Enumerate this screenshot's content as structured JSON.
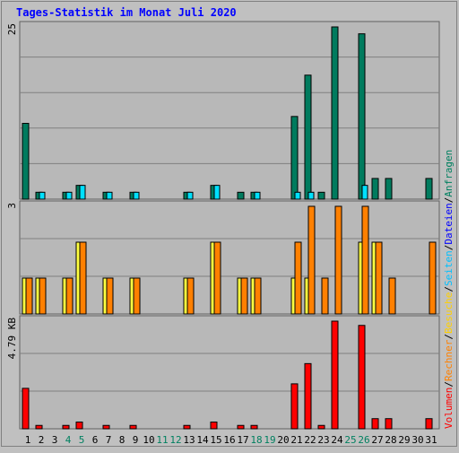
{
  "title": "Tages-Statistik im Monat Juli 2020",
  "colors": {
    "background": "#c0c0c0",
    "plot_bg": "#b8b8b8",
    "gridline": "#808080",
    "title": "#0000ff",
    "anfragen": "#007b5e",
    "dateien": "#00e0ff",
    "seiten": "#ff8000",
    "besuche": "#ffff40",
    "rechner": "#ff8000",
    "volumen": "#ff0000",
    "weekend_label": "#008060",
    "day_label": "#000000"
  },
  "legend": {
    "top": [
      {
        "text": "Anfragen",
        "color": "#008060"
      },
      {
        "text": "/",
        "color": "#000000"
      },
      {
        "text": "Dateien",
        "color": "#0000ff"
      },
      {
        "text": "/",
        "color": "#000000"
      },
      {
        "text": "Seiten",
        "color": "#00c0ff"
      },
      {
        "text": "/",
        "color": "#000000"
      },
      {
        "text": "Besuche",
        "color": "#ffd000"
      },
      {
        "text": "/",
        "color": "#000000"
      },
      {
        "text": "Rechner",
        "color": "#ff8000"
      },
      {
        "text": "/",
        "color": "#000000"
      },
      {
        "text": "Volumen",
        "color": "#ff0000"
      }
    ]
  },
  "chart_data": [
    {
      "type": "bar",
      "panel": "top",
      "ymax_label": "25",
      "ylim": [
        0,
        25
      ],
      "x": [
        1,
        2,
        3,
        4,
        5,
        6,
        7,
        8,
        9,
        10,
        11,
        12,
        13,
        14,
        15,
        16,
        17,
        18,
        19,
        20,
        21,
        22,
        23,
        24,
        25,
        26,
        27,
        28,
        29,
        30,
        31
      ],
      "series": [
        {
          "name": "Anfragen",
          "values": [
            11,
            1,
            0,
            1,
            2,
            0,
            1,
            0,
            1,
            0,
            0,
            0,
            1,
            0,
            2,
            0,
            1,
            1,
            0,
            0,
            12,
            18,
            1,
            25,
            0,
            24,
            3,
            3,
            0,
            0,
            3
          ]
        },
        {
          "name": "Dateien",
          "values": [
            0,
            1,
            0,
            1,
            2,
            0,
            1,
            0,
            1,
            0,
            0,
            0,
            1,
            0,
            2,
            0,
            0,
            1,
            0,
            0,
            1,
            1,
            0,
            0,
            0,
            2,
            0,
            0,
            0,
            0,
            0
          ]
        }
      ]
    },
    {
      "type": "bar",
      "panel": "middle",
      "ymax_label": "3",
      "ylim": [
        0,
        3
      ],
      "x": [
        1,
        2,
        3,
        4,
        5,
        6,
        7,
        8,
        9,
        10,
        11,
        12,
        13,
        14,
        15,
        16,
        17,
        18,
        19,
        20,
        21,
        22,
        23,
        24,
        25,
        26,
        27,
        28,
        29,
        30,
        31
      ],
      "series": [
        {
          "name": "Besuche",
          "values": [
            1,
            1,
            0,
            1,
            2,
            0,
            1,
            0,
            1,
            0,
            0,
            0,
            1,
            0,
            2,
            0,
            1,
            1,
            0,
            0,
            1,
            1,
            0,
            0,
            0,
            2,
            2,
            0,
            0,
            0,
            0
          ]
        },
        {
          "name": "Rechner",
          "values": [
            1,
            1,
            0,
            1,
            2,
            0,
            1,
            0,
            1,
            0,
            0,
            0,
            1,
            0,
            2,
            0,
            1,
            1,
            0,
            0,
            2,
            3,
            1,
            3,
            0,
            3,
            2,
            1,
            0,
            0,
            2
          ]
        }
      ]
    },
    {
      "type": "bar",
      "panel": "bottom",
      "ymax_label": "4.79 KB",
      "ylim": [
        0,
        4.79
      ],
      "x": [
        1,
        2,
        3,
        4,
        5,
        6,
        7,
        8,
        9,
        10,
        11,
        12,
        13,
        14,
        15,
        16,
        17,
        18,
        19,
        20,
        21,
        22,
        23,
        24,
        25,
        26,
        27,
        28,
        29,
        30,
        31
      ],
      "series": [
        {
          "name": "Volumen",
          "values": [
            1.8,
            0.15,
            0,
            0.15,
            0.3,
            0,
            0.15,
            0,
            0.15,
            0,
            0,
            0,
            0.15,
            0,
            0.3,
            0,
            0.15,
            0.15,
            0,
            0,
            2.0,
            2.9,
            0.15,
            4.79,
            0,
            4.6,
            0.45,
            0.45,
            0,
            0,
            0.45
          ]
        }
      ]
    }
  ],
  "xaxis": {
    "labels": [
      "1",
      "2",
      "3",
      "4",
      "5",
      "6",
      "7",
      "8",
      "9",
      "10",
      "11",
      "12",
      "13",
      "14",
      "15",
      "16",
      "17",
      "18",
      "19",
      "20",
      "21",
      "22",
      "23",
      "24",
      "25",
      "26",
      "27",
      "28",
      "29",
      "30",
      "31"
    ],
    "weekend_days": [
      4,
      5,
      11,
      12,
      18,
      19,
      25,
      26
    ]
  }
}
